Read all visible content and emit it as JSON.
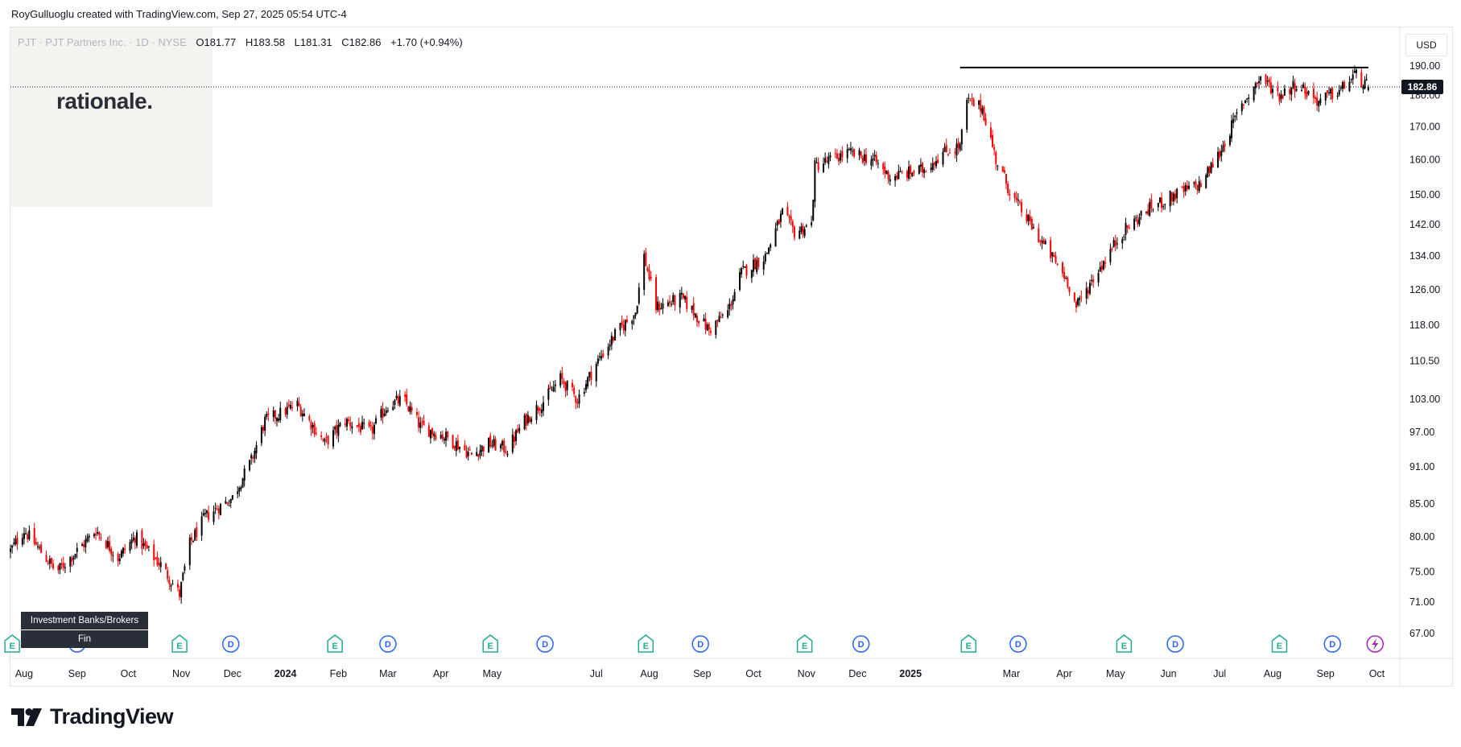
{
  "attribution": "RoyGulluoglu created with TradingView.com, Sep 27, 2025 05:54 UTC-4",
  "legend": {
    "symbol": "PJT · PJT Partners Inc. · 1D · NYSE",
    "open": "O181.77",
    "high": "H183.58",
    "low": "L181.31",
    "close": "C182.86",
    "change": "+1.70 (+0.94%)"
  },
  "currency": "USD",
  "watermark": "rationale.",
  "sector_tags": [
    "Investment Banks/Brokers",
    "Fin"
  ],
  "footer_logo": "TradingView",
  "colors": {
    "up": "#000000",
    "down": "#ff0000",
    "resistance": "#000000",
    "earnings": "#22ab94",
    "dividend": "#2962ff",
    "lightning": "#9c27b0"
  },
  "chart_data": {
    "type": "candlestick",
    "title": "",
    "xlabel": "",
    "ylabel": "",
    "y_scale": "log",
    "ylim": [
      64,
      204
    ],
    "x_range": [
      "2023-07-24",
      "2025-10-14"
    ],
    "y_ticks": [
      67,
      71,
      75,
      80,
      85,
      91,
      97,
      103,
      110.5,
      118,
      126,
      134,
      142,
      150,
      160,
      170,
      180,
      190
    ],
    "y_tick_labels": [
      "67.00",
      "71.00",
      "75.00",
      "80.00",
      "85.00",
      "91.00",
      "97.00",
      "103.00",
      "110.50",
      "118.00",
      "126.00",
      "134.00",
      "142.00",
      "150.00",
      "160.00",
      "170.00",
      "180.00",
      "190.00"
    ],
    "x_ticks": [
      {
        "label": "Aug",
        "date": "2023-08-01"
      },
      {
        "label": "Sep",
        "date": "2023-09-01"
      },
      {
        "label": "Oct",
        "date": "2023-10-01"
      },
      {
        "label": "Nov",
        "date": "2023-11-01"
      },
      {
        "label": "Dec",
        "date": "2023-12-01"
      },
      {
        "label": "2024",
        "date": "2024-01-01",
        "bold": true
      },
      {
        "label": "Feb",
        "date": "2024-02-01"
      },
      {
        "label": "Mar",
        "date": "2024-03-01"
      },
      {
        "label": "Apr",
        "date": "2024-04-01"
      },
      {
        "label": "May",
        "date": "2024-05-01"
      },
      {
        "label": "Jul",
        "date": "2024-07-01"
      },
      {
        "label": "Aug",
        "date": "2024-08-01"
      },
      {
        "label": "Sep",
        "date": "2024-09-01"
      },
      {
        "label": "Oct",
        "date": "2024-10-01"
      },
      {
        "label": "Nov",
        "date": "2024-11-01"
      },
      {
        "label": "Dec",
        "date": "2024-12-01"
      },
      {
        "label": "2025",
        "date": "2025-01-01",
        "bold": true
      },
      {
        "label": "Mar",
        "date": "2025-03-01"
      },
      {
        "label": "Apr",
        "date": "2025-04-01"
      },
      {
        "label": "May",
        "date": "2025-05-01"
      },
      {
        "label": "Jun",
        "date": "2025-06-01"
      },
      {
        "label": "Jul",
        "date": "2025-07-01"
      },
      {
        "label": "Aug",
        "date": "2025-08-01"
      },
      {
        "label": "Sep",
        "date": "2025-09-01"
      },
      {
        "label": "Oct",
        "date": "2025-10-01"
      }
    ],
    "last_price": {
      "value": 182.86,
      "label": "182.86"
    },
    "resistance_line": {
      "value": 189.5,
      "from": "2025-01-30",
      "to": "2025-09-26"
    },
    "price_path": [
      {
        "date": "2023-07-24",
        "close": 78
      },
      {
        "date": "2023-08-01",
        "close": 81
      },
      {
        "date": "2023-08-20",
        "close": 75
      },
      {
        "date": "2023-09-05",
        "close": 79
      },
      {
        "date": "2023-09-12",
        "close": 81
      },
      {
        "date": "2023-09-25",
        "close": 77
      },
      {
        "date": "2023-10-05",
        "close": 80
      },
      {
        "date": "2023-10-20",
        "close": 76
      },
      {
        "date": "2023-10-31",
        "close": 72
      },
      {
        "date": "2023-11-06",
        "close": 79
      },
      {
        "date": "2023-11-15",
        "close": 83
      },
      {
        "date": "2023-12-01",
        "close": 86
      },
      {
        "date": "2023-12-12",
        "close": 92
      },
      {
        "date": "2023-12-20",
        "close": 99
      },
      {
        "date": "2024-01-08",
        "close": 102
      },
      {
        "date": "2024-01-24",
        "close": 95
      },
      {
        "date": "2024-02-05",
        "close": 99
      },
      {
        "date": "2024-02-20",
        "close": 97
      },
      {
        "date": "2024-03-01",
        "close": 102
      },
      {
        "date": "2024-03-10",
        "close": 103
      },
      {
        "date": "2024-03-20",
        "close": 98
      },
      {
        "date": "2024-04-05",
        "close": 96
      },
      {
        "date": "2024-04-19",
        "close": 93
      },
      {
        "date": "2024-04-29",
        "close": 95
      },
      {
        "date": "2024-05-10",
        "close": 94
      },
      {
        "date": "2024-05-20",
        "close": 99
      },
      {
        "date": "2024-06-01",
        "close": 103
      },
      {
        "date": "2024-06-10",
        "close": 107
      },
      {
        "date": "2024-06-20",
        "close": 103
      },
      {
        "date": "2024-07-01",
        "close": 110
      },
      {
        "date": "2024-07-12",
        "close": 116
      },
      {
        "date": "2024-07-24",
        "close": 121
      },
      {
        "date": "2024-07-29",
        "close": 134
      },
      {
        "date": "2024-08-05",
        "close": 122
      },
      {
        "date": "2024-08-20",
        "close": 124
      },
      {
        "date": "2024-09-05",
        "close": 117
      },
      {
        "date": "2024-09-16",
        "close": 121
      },
      {
        "date": "2024-09-24",
        "close": 130
      },
      {
        "date": "2024-10-08",
        "close": 134
      },
      {
        "date": "2024-10-18",
        "close": 145
      },
      {
        "date": "2024-10-25",
        "close": 140
      },
      {
        "date": "2024-11-04",
        "close": 142
      },
      {
        "date": "2024-11-06",
        "close": 158
      },
      {
        "date": "2024-11-25",
        "close": 162
      },
      {
        "date": "2024-12-10",
        "close": 160
      },
      {
        "date": "2024-12-20",
        "close": 155
      },
      {
        "date": "2025-01-08",
        "close": 157
      },
      {
        "date": "2025-01-20",
        "close": 162
      },
      {
        "date": "2025-01-30",
        "close": 164
      },
      {
        "date": "2025-02-03",
        "close": 178
      },
      {
        "date": "2025-02-12",
        "close": 176
      },
      {
        "date": "2025-02-20",
        "close": 160
      },
      {
        "date": "2025-03-01",
        "close": 150
      },
      {
        "date": "2025-03-15",
        "close": 140
      },
      {
        "date": "2025-04-03",
        "close": 128
      },
      {
        "date": "2025-04-08",
        "close": 122
      },
      {
        "date": "2025-04-20",
        "close": 130
      },
      {
        "date": "2025-05-05",
        "close": 140
      },
      {
        "date": "2025-05-20",
        "close": 146
      },
      {
        "date": "2025-06-05",
        "close": 150
      },
      {
        "date": "2025-06-20",
        "close": 153
      },
      {
        "date": "2025-07-01",
        "close": 162
      },
      {
        "date": "2025-07-15",
        "close": 178
      },
      {
        "date": "2025-07-25",
        "close": 186
      },
      {
        "date": "2025-08-05",
        "close": 180
      },
      {
        "date": "2025-08-15",
        "close": 184
      },
      {
        "date": "2025-08-28",
        "close": 178
      },
      {
        "date": "2025-09-10",
        "close": 182
      },
      {
        "date": "2025-09-18",
        "close": 187
      },
      {
        "date": "2025-09-26",
        "close": 182.86
      }
    ],
    "events": [
      {
        "type": "E",
        "date": "2023-07-25"
      },
      {
        "type": "D",
        "date": "2023-09-01"
      },
      {
        "type": "E",
        "date": "2023-10-31"
      },
      {
        "type": "D",
        "date": "2023-11-30"
      },
      {
        "type": "E",
        "date": "2024-01-30"
      },
      {
        "type": "D",
        "date": "2024-03-01"
      },
      {
        "type": "E",
        "date": "2024-04-30"
      },
      {
        "type": "D",
        "date": "2024-06-01"
      },
      {
        "type": "E",
        "date": "2024-07-30"
      },
      {
        "type": "D",
        "date": "2024-08-31"
      },
      {
        "type": "E",
        "date": "2024-10-31"
      },
      {
        "type": "D",
        "date": "2024-12-03"
      },
      {
        "type": "E",
        "date": "2025-02-04"
      },
      {
        "type": "D",
        "date": "2025-03-05"
      },
      {
        "type": "E",
        "date": "2025-05-06"
      },
      {
        "type": "D",
        "date": "2025-06-05"
      },
      {
        "type": "E",
        "date": "2025-08-05"
      },
      {
        "type": "D",
        "date": "2025-09-05"
      },
      {
        "type": "lightning",
        "date": "2025-09-30"
      }
    ]
  }
}
